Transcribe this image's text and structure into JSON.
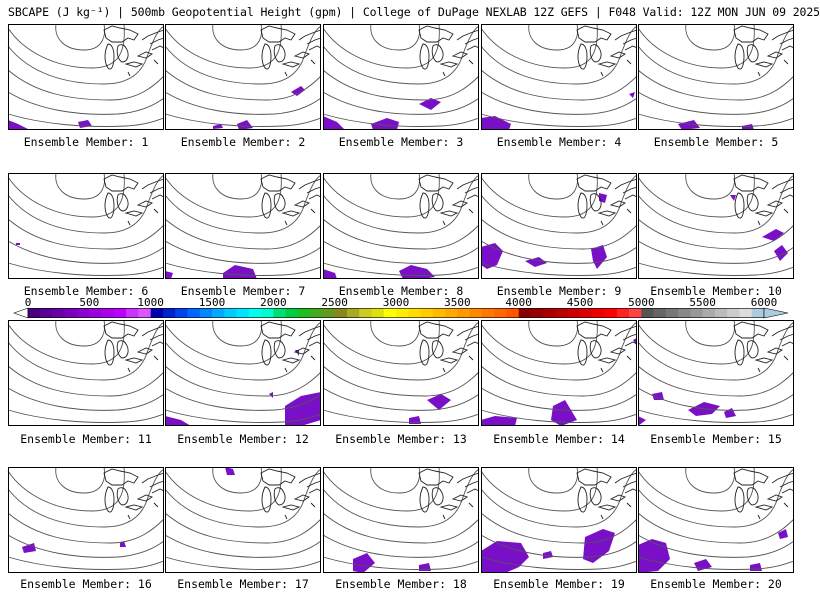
{
  "title": "SBCAPE (J kg⁻¹) | 500mb Geopotential Height (gpm) | College of DuPage NEXLAB 12Z GEFS | F048 Valid: 12Z MON JUN 09 2025",
  "member_label_prefix": "Ensemble Member: ",
  "members": [
    {
      "label": "Ensemble Member: 1"
    },
    {
      "label": "Ensemble Member: 2"
    },
    {
      "label": "Ensemble Member: 3"
    },
    {
      "label": "Ensemble Member: 4"
    },
    {
      "label": "Ensemble Member: 5"
    },
    {
      "label": "Ensemble Member: 6"
    },
    {
      "label": "Ensemble Member: 7"
    },
    {
      "label": "Ensemble Member: 8"
    },
    {
      "label": "Ensemble Member: 9"
    },
    {
      "label": "Ensemble Member: 10"
    },
    {
      "label": "Ensemble Member: 11"
    },
    {
      "label": "Ensemble Member: 12"
    },
    {
      "label": "Ensemble Member: 13"
    },
    {
      "label": "Ensemble Member: 14"
    },
    {
      "label": "Ensemble Member: 15"
    },
    {
      "label": "Ensemble Member: 16"
    },
    {
      "label": "Ensemble Member: 17"
    },
    {
      "label": "Ensemble Member: 18"
    },
    {
      "label": "Ensemble Member: 19"
    },
    {
      "label": "Ensemble Member: 20"
    }
  ],
  "colorbar": {
    "min": 0,
    "max": 6000,
    "step": 100,
    "tick_labels": [
      "0",
      "500",
      "1000",
      "1500",
      "2000",
      "2500",
      "3000",
      "3500",
      "4000",
      "4500",
      "5000",
      "5500",
      "6000"
    ],
    "colors": [
      "#ffffff",
      "#4b0082",
      "#5a0095",
      "#6a00a8",
      "#7a00bb",
      "#8a00cc",
      "#9a00dd",
      "#aa00ee",
      "#bb00ff",
      "#cc33ff",
      "#dd55ff",
      "#0000aa",
      "#0022cc",
      "#0044ee",
      "#0066ff",
      "#0088ff",
      "#00aaff",
      "#00ccff",
      "#00e5ff",
      "#00ffee",
      "#00ffcc",
      "#00e070",
      "#00cc44",
      "#22bb22",
      "#44aa22",
      "#669922",
      "#888822",
      "#aaaa22",
      "#cccc22",
      "#e0e011",
      "#ffff00",
      "#ffee00",
      "#ffdd00",
      "#ffcc00",
      "#ffbb00",
      "#ffaa00",
      "#ff9900",
      "#ff8800",
      "#ff7700",
      "#ff6600",
      "#ff5500",
      "#880000",
      "#990000",
      "#aa0000",
      "#bb0000",
      "#cc0000",
      "#dd0000",
      "#ee0000",
      "#ff0000",
      "#ff2222",
      "#ff4444",
      "#555555",
      "#666666",
      "#777777",
      "#888888",
      "#999999",
      "#aaaaaa",
      "#bbbbbb",
      "#cccccc",
      "#dddddd",
      "#aaccdd"
    ]
  },
  "colors": {
    "cape_fill": "#7a0fc8",
    "contour": "#555555",
    "coast": "#222222",
    "frame": "#000000"
  }
}
